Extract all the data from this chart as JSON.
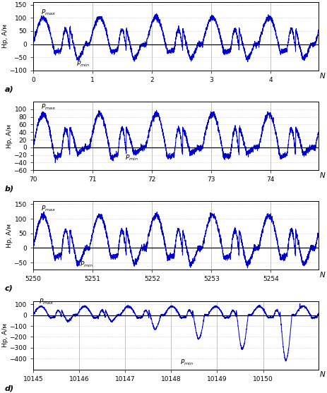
{
  "subplots": [
    {
      "label": "a)",
      "xlim": [
        0,
        4.8
      ],
      "ylim": [
        -100,
        160
      ],
      "yticks": [
        -100,
        -50,
        0,
        50,
        100,
        150
      ],
      "xticks": [
        0,
        1,
        2,
        3,
        4
      ],
      "xticklabels": [
        "0",
        "1",
        "2",
        "3",
        "4"
      ],
      "pmax_x": 0.13,
      "pmax_y": 112,
      "pmin_x": 0.72,
      "pmin_y": -82,
      "period": 0.95,
      "x_start": 0,
      "x_end": 4.8,
      "amp_max": 100,
      "amp_min": -55,
      "noise": 5
    },
    {
      "label": "b)",
      "xlim": [
        70,
        74.8
      ],
      "ylim": [
        -60,
        120
      ],
      "yticks": [
        -60,
        -40,
        -20,
        0,
        20,
        40,
        60,
        80,
        100
      ],
      "xticks": [
        70,
        71,
        72,
        73,
        74
      ],
      "xticklabels": [
        "70",
        "71",
        "72",
        "73",
        "74"
      ],
      "pmax_x": 70.13,
      "pmax_y": 100,
      "pmin_x": 71.55,
      "pmin_y": -32,
      "period": 0.95,
      "x_start": 70,
      "x_end": 74.8,
      "amp_max": 88,
      "amp_min": -15,
      "noise": 4
    },
    {
      "label": "c)",
      "xlim": [
        5250,
        5254.8
      ],
      "ylim": [
        -75,
        160
      ],
      "yticks": [
        -50,
        0,
        50,
        100,
        150
      ],
      "xticks": [
        5250,
        5251,
        5252,
        5253,
        5254
      ],
      "xticklabels": [
        "5250",
        "5251",
        "5252",
        "5253",
        "5254"
      ],
      "pmax_x": 5250.13,
      "pmax_y": 128,
      "pmin_x": 5250.78,
      "pmin_y": -62,
      "period": 0.95,
      "x_start": 5250,
      "x_end": 5254.8,
      "amp_max": 112,
      "amp_min": -55,
      "noise": 5
    },
    {
      "label": "d)",
      "xlim": [
        10145,
        10151.2
      ],
      "ylim": [
        -500,
        130
      ],
      "yticks": [
        -400,
        -300,
        -200,
        -100,
        0,
        100
      ],
      "xticks": [
        10145,
        10146,
        10147,
        10148,
        10149,
        10150
      ],
      "xticklabels": [
        "10145",
        "10146",
        "10147",
        "10148",
        "10149",
        "10150"
      ],
      "pmax_x": 10145.13,
      "pmax_y": 105,
      "pmin_x": 10148.2,
      "pmin_y": -455,
      "period": 0.95,
      "x_start": 10145,
      "x_end": 10151.2,
      "amp_max": 80,
      "amp_min": -55,
      "noise": 5
    }
  ],
  "line_color": "#0000cc",
  "ylabel": "Нр, А/м",
  "grid_color": "#aaaaaa",
  "zero_line_color": "#000000"
}
